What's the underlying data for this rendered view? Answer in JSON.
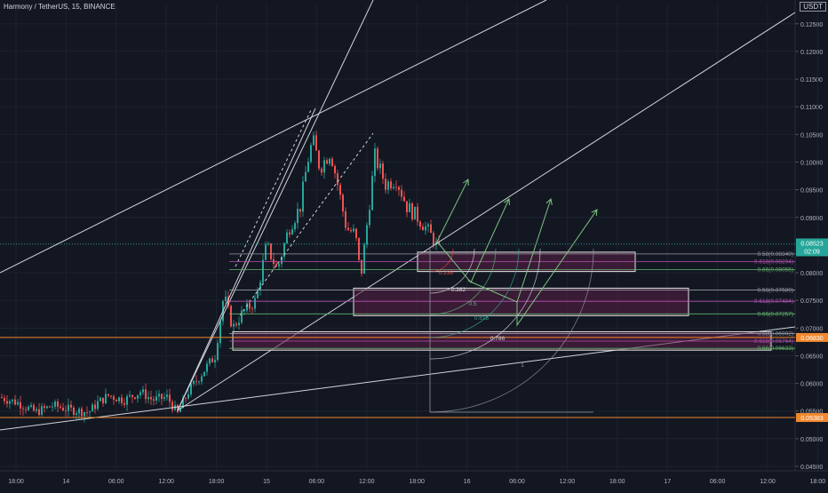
{
  "header": {
    "title": "Harmony / TetherUS, 15, BINANCE",
    "quote_currency": "USDT"
  },
  "chart_data": {
    "type": "candlestick",
    "title": "Harmony / TetherUS, 15, BINANCE",
    "y_unit": "USDT",
    "ylim": [
      0.0442,
      0.1285
    ],
    "y_ticks": [
      "0.04500",
      "0.05000",
      "0.05500",
      "0.06000",
      "0.06500",
      "0.07000",
      "0.07500",
      "0.08000",
      "0.08500",
      "0.09000",
      "0.09500",
      "0.10000",
      "0.10500",
      "0.11000",
      "0.11500",
      "0.12000",
      "0.12500"
    ],
    "x_ticks": [
      "18:00",
      "14",
      "06:00",
      "12:00",
      "18:00",
      "15",
      "06:00",
      "12:00",
      "18:00",
      "16",
      "06:00",
      "12:00",
      "18:00",
      "17",
      "06:00",
      "12:00",
      "18:00"
    ],
    "price_path": [
      [
        0,
        0.0575
      ],
      [
        20,
        0.0565
      ],
      [
        40,
        0.0548
      ],
      [
        60,
        0.056
      ],
      [
        80,
        0.0552
      ],
      [
        100,
        0.0548
      ],
      [
        110,
        0.0565
      ],
      [
        122,
        0.0578
      ],
      [
        140,
        0.057
      ],
      [
        158,
        0.0585
      ],
      [
        172,
        0.057
      ],
      [
        188,
        0.0575
      ],
      [
        200,
        0.0545
      ],
      [
        212,
        0.0585
      ],
      [
        228,
        0.062
      ],
      [
        242,
        0.065
      ],
      [
        252,
        0.076
      ],
      [
        262,
        0.07
      ],
      [
        272,
        0.0725
      ],
      [
        288,
        0.075
      ],
      [
        300,
        0.085
      ],
      [
        312,
        0.0805
      ],
      [
        325,
        0.088
      ],
      [
        338,
        0.092
      ],
      [
        346,
        0.1
      ],
      [
        352,
        0.104
      ],
      [
        360,
        0.099
      ],
      [
        372,
        0.102
      ],
      [
        380,
        0.096
      ],
      [
        390,
        0.088
      ],
      [
        400,
        0.087
      ],
      [
        406,
        0.079
      ],
      [
        414,
        0.09
      ],
      [
        422,
        0.101
      ],
      [
        434,
        0.096
      ],
      [
        446,
        0.097
      ],
      [
        458,
        0.092
      ],
      [
        470,
        0.09
      ],
      [
        480,
        0.088
      ],
      [
        488,
        0.086
      ],
      [
        494,
        0.084
      ]
    ],
    "last_price": {
      "value": 0.08523,
      "label": "0.08523",
      "countdown": "02:09"
    },
    "support_lines": [
      {
        "value": 0.0683,
        "label": "0.06830",
        "color": "#f0882f"
      },
      {
        "value": 0.05383,
        "label": "0.05383",
        "color": "#f0882f"
      }
    ],
    "fib_zones": [
      {
        "levels": [
          {
            "text": "0.58(0.08340)",
            "value": 0.0834,
            "color": "#9598a1"
          },
          {
            "text": "0.618(0.08204)",
            "value": 0.08204,
            "color": "#b24fb0"
          },
          {
            "text": "0.66(0.08055)",
            "value": 0.08055,
            "color": "#62b36b"
          }
        ]
      },
      {
        "levels": [
          {
            "text": "0.58(0.07689)",
            "value": 0.07689,
            "color": "#9598a1"
          },
          {
            "text": "0.618(0.07484)",
            "value": 0.07484,
            "color": "#b24fb0"
          },
          {
            "text": "0.66(0.07257)",
            "value": 0.07257,
            "color": "#62b36b"
          }
        ]
      },
      {
        "levels": [
          {
            "text": "0.58(0.06902)",
            "value": 0.06902,
            "color": "#9598a1"
          },
          {
            "text": "0.618(0.06764)",
            "value": 0.06764,
            "color": "#b24fb0"
          },
          {
            "text": "0.66(0.06633)",
            "value": 0.06633,
            "color": "#62b36b"
          }
        ]
      }
    ],
    "fib_fan_labels": [
      {
        "text": "0.236",
        "color": "#e0514b"
      },
      {
        "text": "0.382",
        "color": "#d1d4dc"
      },
      {
        "text": "0.5",
        "color": "#5fb57a"
      },
      {
        "text": "0.618",
        "color": "#3aa08a"
      },
      {
        "text": "0.786",
        "color": "#d1d4dc"
      },
      {
        "text": "1",
        "color": "#9598a1"
      }
    ],
    "colors": {
      "background": "#131722",
      "up": "#26a69a",
      "down": "#ef5350",
      "trendline": "#d1d4dc",
      "support": "#f0882f",
      "zone_fill": "#5a1f45",
      "projection": "#7cc47f",
      "last_price": "#26a69a"
    }
  }
}
